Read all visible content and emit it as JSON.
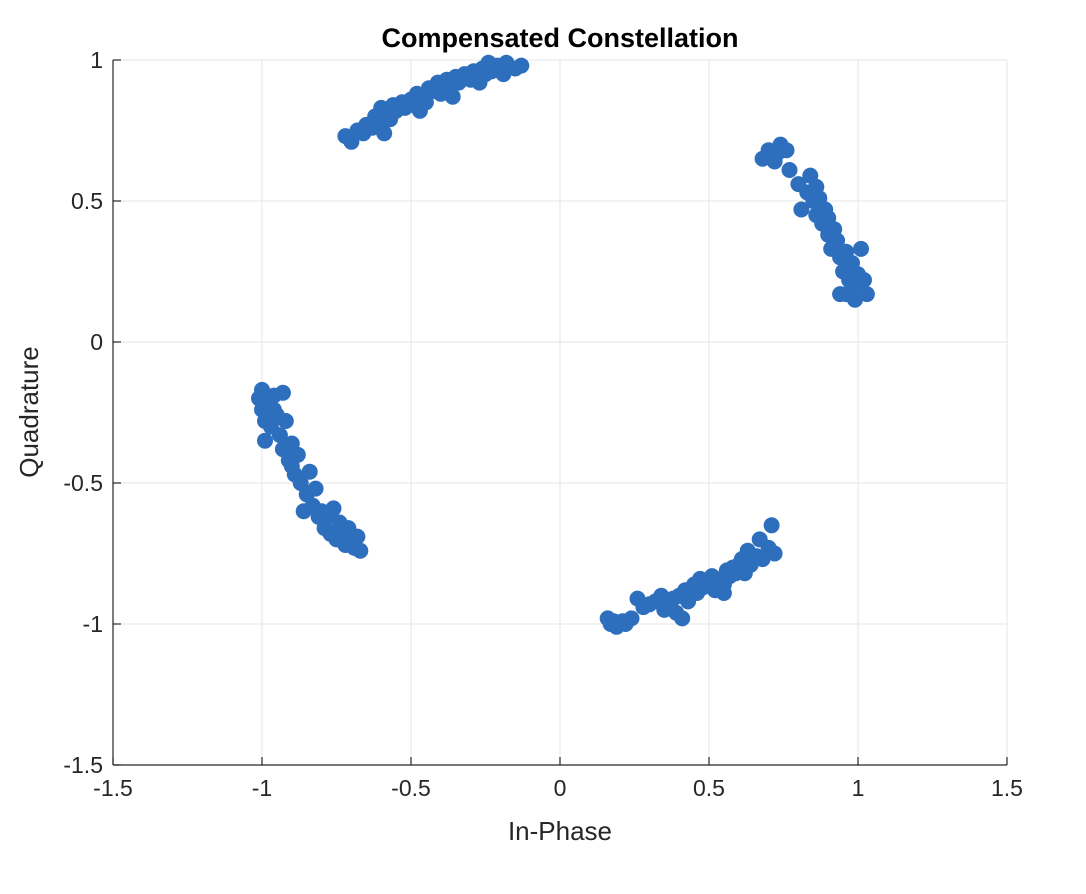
{
  "chart_data": {
    "type": "scatter",
    "title": "Compensated Constellation",
    "xlabel": "In-Phase",
    "ylabel": "Quadrature",
    "xlim": [
      -1.5,
      1.5
    ],
    "ylim": [
      -1.5,
      1
    ],
    "xticks": [
      -1.5,
      -1,
      -0.5,
      0,
      0.5,
      1,
      1.5
    ],
    "xtick_labels": [
      "-1.5",
      "-1",
      "-0.5",
      "0",
      "0.5",
      "1",
      "1.5"
    ],
    "yticks": [
      -1.5,
      -1,
      -0.5,
      0,
      0.5,
      1
    ],
    "ytick_labels": [
      "-1.5",
      "-1",
      "-0.5",
      "0",
      "0.5",
      "1"
    ],
    "grid": true,
    "marker_color": "#2e6fbd",
    "series": [
      {
        "values": [
          [
            -0.72,
            0.73
          ],
          [
            -0.7,
            0.71
          ],
          [
            -0.68,
            0.75
          ],
          [
            -0.66,
            0.74
          ],
          [
            -0.65,
            0.77
          ],
          [
            -0.63,
            0.76
          ],
          [
            -0.62,
            0.8
          ],
          [
            -0.6,
            0.78
          ],
          [
            -0.6,
            0.83
          ],
          [
            -0.58,
            0.81
          ],
          [
            -0.57,
            0.79
          ],
          [
            -0.56,
            0.84
          ],
          [
            -0.55,
            0.82
          ],
          [
            -0.53,
            0.85
          ],
          [
            -0.52,
            0.83
          ],
          [
            -0.5,
            0.86
          ],
          [
            -0.49,
            0.84
          ],
          [
            -0.48,
            0.88
          ],
          [
            -0.46,
            0.87
          ],
          [
            -0.45,
            0.85
          ],
          [
            -0.44,
            0.9
          ],
          [
            -0.42,
            0.89
          ],
          [
            -0.41,
            0.92
          ],
          [
            -0.4,
            0.88
          ],
          [
            -0.38,
            0.93
          ],
          [
            -0.37,
            0.9
          ],
          [
            -0.35,
            0.94
          ],
          [
            -0.34,
            0.92
          ],
          [
            -0.32,
            0.95
          ],
          [
            -0.3,
            0.93
          ],
          [
            -0.29,
            0.96
          ],
          [
            -0.27,
            0.94
          ],
          [
            -0.26,
            0.97
          ],
          [
            -0.25,
            0.95
          ],
          [
            -0.24,
            0.99
          ],
          [
            -0.23,
            0.96
          ],
          [
            -0.21,
            0.98
          ],
          [
            -0.19,
            0.95
          ],
          [
            -0.18,
            0.99
          ],
          [
            -0.15,
            0.97
          ],
          [
            -0.13,
            0.98
          ],
          [
            -0.36,
            0.87
          ],
          [
            -0.47,
            0.82
          ],
          [
            -0.59,
            0.74
          ],
          [
            -0.27,
            0.92
          ],
          [
            0.68,
            0.65
          ],
          [
            0.7,
            0.68
          ],
          [
            0.72,
            0.64
          ],
          [
            0.73,
            0.67
          ],
          [
            0.74,
            0.7
          ],
          [
            0.76,
            0.68
          ],
          [
            0.77,
            0.61
          ],
          [
            0.8,
            0.56
          ],
          [
            0.81,
            0.47
          ],
          [
            0.83,
            0.53
          ],
          [
            0.84,
            0.59
          ],
          [
            0.85,
            0.5
          ],
          [
            0.86,
            0.55
          ],
          [
            0.86,
            0.45
          ],
          [
            0.87,
            0.51
          ],
          [
            0.88,
            0.42
          ],
          [
            0.89,
            0.47
          ],
          [
            0.9,
            0.38
          ],
          [
            0.9,
            0.44
          ],
          [
            0.91,
            0.33
          ],
          [
            0.92,
            0.4
          ],
          [
            0.93,
            0.36
          ],
          [
            0.94,
            0.3
          ],
          [
            0.95,
            0.25
          ],
          [
            0.96,
            0.32
          ],
          [
            0.97,
            0.22
          ],
          [
            0.98,
            0.28
          ],
          [
            0.99,
            0.2
          ],
          [
            1.0,
            0.24
          ],
          [
            1.01,
            0.33
          ],
          [
            1.02,
            0.22
          ],
          [
            1.03,
            0.17
          ],
          [
            0.99,
            0.15
          ],
          [
            0.96,
            0.17
          ],
          [
            0.94,
            0.17
          ],
          [
            -1.01,
            -0.2
          ],
          [
            -1.0,
            -0.24
          ],
          [
            -1.0,
            -0.17
          ],
          [
            -0.99,
            -0.28
          ],
          [
            -0.99,
            -0.35
          ],
          [
            -0.98,
            -0.22
          ],
          [
            -0.97,
            -0.3
          ],
          [
            -0.96,
            -0.19
          ],
          [
            -0.95,
            -0.26
          ],
          [
            -0.94,
            -0.33
          ],
          [
            -0.93,
            -0.18
          ],
          [
            -0.93,
            -0.38
          ],
          [
            -0.92,
            -0.28
          ],
          [
            -0.91,
            -0.42
          ],
          [
            -0.9,
            -0.36
          ],
          [
            -0.89,
            -0.47
          ],
          [
            -0.88,
            -0.4
          ],
          [
            -0.87,
            -0.5
          ],
          [
            -0.86,
            -0.6
          ],
          [
            -0.85,
            -0.54
          ],
          [
            -0.84,
            -0.46
          ],
          [
            -0.83,
            -0.58
          ],
          [
            -0.82,
            -0.52
          ],
          [
            -0.81,
            -0.62
          ],
          [
            -0.8,
            -0.6
          ],
          [
            -0.79,
            -0.66
          ],
          [
            -0.78,
            -0.62
          ],
          [
            -0.77,
            -0.68
          ],
          [
            -0.76,
            -0.59
          ],
          [
            -0.75,
            -0.7
          ],
          [
            -0.74,
            -0.64
          ],
          [
            -0.73,
            -0.67
          ],
          [
            -0.72,
            -0.72
          ],
          [
            -0.71,
            -0.66
          ],
          [
            -0.7,
            -0.7
          ],
          [
            -0.69,
            -0.73
          ],
          [
            -0.68,
            -0.69
          ],
          [
            -0.67,
            -0.74
          ],
          [
            -0.96,
            -0.24
          ],
          [
            -0.9,
            -0.44
          ],
          [
            0.16,
            -0.98
          ],
          [
            0.17,
            -1.0
          ],
          [
            0.18,
            -0.99
          ],
          [
            0.19,
            -1.01
          ],
          [
            0.21,
            -0.99
          ],
          [
            0.22,
            -1.0
          ],
          [
            0.24,
            -0.98
          ],
          [
            0.26,
            -0.91
          ],
          [
            0.28,
            -0.94
          ],
          [
            0.3,
            -0.93
          ],
          [
            0.32,
            -0.92
          ],
          [
            0.34,
            -0.9
          ],
          [
            0.35,
            -0.95
          ],
          [
            0.37,
            -0.93
          ],
          [
            0.38,
            -0.91
          ],
          [
            0.39,
            -0.96
          ],
          [
            0.4,
            -0.9
          ],
          [
            0.42,
            -0.88
          ],
          [
            0.43,
            -0.92
          ],
          [
            0.45,
            -0.86
          ],
          [
            0.46,
            -0.89
          ],
          [
            0.47,
            -0.84
          ],
          [
            0.48,
            -0.87
          ],
          [
            0.5,
            -0.85
          ],
          [
            0.51,
            -0.83
          ],
          [
            0.52,
            -0.88
          ],
          [
            0.54,
            -0.84
          ],
          [
            0.55,
            -0.86
          ],
          [
            0.56,
            -0.81
          ],
          [
            0.57,
            -0.83
          ],
          [
            0.58,
            -0.8
          ],
          [
            0.59,
            -0.82
          ],
          [
            0.6,
            -0.79
          ],
          [
            0.61,
            -0.77
          ],
          [
            0.62,
            -0.82
          ],
          [
            0.63,
            -0.74
          ],
          [
            0.64,
            -0.79
          ],
          [
            0.66,
            -0.76
          ],
          [
            0.67,
            -0.7
          ],
          [
            0.68,
            -0.77
          ],
          [
            0.7,
            -0.73
          ],
          [
            0.71,
            -0.65
          ],
          [
            0.72,
            -0.75
          ],
          [
            0.41,
            -0.98
          ],
          [
            0.55,
            -0.89
          ]
        ]
      }
    ]
  }
}
